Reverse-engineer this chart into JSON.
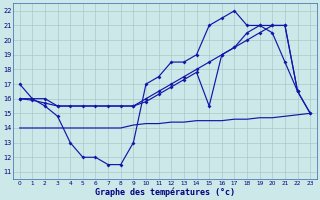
{
  "title": "Graphe des températures (°c)",
  "bg_color": "#cce8e8",
  "line_color": "#1515aa",
  "x_ticks": [
    0,
    1,
    2,
    3,
    4,
    5,
    6,
    7,
    8,
    9,
    10,
    11,
    12,
    13,
    14,
    15,
    16,
    17,
    18,
    19,
    20,
    21,
    22,
    23
  ],
  "y_ticks": [
    11,
    12,
    13,
    14,
    15,
    16,
    17,
    18,
    19,
    20,
    21,
    22
  ],
  "ylim": [
    10.5,
    22.5
  ],
  "xlim": [
    -0.5,
    23.5
  ],
  "s1_x": [
    0,
    1,
    2,
    3,
    4,
    5,
    6,
    7,
    8,
    9,
    10,
    11,
    12,
    13,
    14,
    15,
    16,
    17,
    18,
    19,
    20,
    21,
    22
  ],
  "s1_y": [
    17.0,
    16.0,
    15.5,
    14.8,
    13.0,
    12.0,
    12.0,
    11.5,
    11.5,
    13.0,
    17.0,
    17.5,
    18.5,
    18.5,
    19.0,
    21.0,
    21.5,
    22.0,
    21.0,
    21.0,
    20.5,
    18.5,
    16.5
  ],
  "s2_x": [
    0,
    1,
    2,
    3,
    9,
    10,
    11,
    12,
    13,
    14,
    15,
    16,
    17,
    18,
    19,
    20,
    21,
    22,
    23
  ],
  "s2_y": [
    16.0,
    15.9,
    15.7,
    15.5,
    15.5,
    15.8,
    16.3,
    16.8,
    17.3,
    17.8,
    15.5,
    19.0,
    19.5,
    20.5,
    21.0,
    21.0,
    21.0,
    16.5,
    15.0
  ],
  "s3_x": [
    0,
    1,
    2,
    3,
    4,
    5,
    6,
    7,
    8,
    9,
    10,
    11,
    12,
    13,
    14,
    15,
    16,
    17,
    18,
    19,
    20,
    21,
    22,
    23
  ],
  "s3_y": [
    16.0,
    16.0,
    16.0,
    15.5,
    15.5,
    15.5,
    15.5,
    15.5,
    15.5,
    15.5,
    16.0,
    16.5,
    17.0,
    17.5,
    18.0,
    18.5,
    19.0,
    19.5,
    20.0,
    20.5,
    21.0,
    21.0,
    16.5,
    15.0
  ],
  "s4_x": [
    0,
    1,
    2,
    3,
    4,
    5,
    6,
    7,
    8,
    9,
    10,
    11,
    12,
    13,
    14,
    15,
    16,
    17,
    18,
    19,
    20,
    21,
    22,
    23
  ],
  "s4_y": [
    14.0,
    14.0,
    14.0,
    14.0,
    14.0,
    14.0,
    14.0,
    14.0,
    14.0,
    14.2,
    14.3,
    14.3,
    14.4,
    14.4,
    14.5,
    14.5,
    14.5,
    14.6,
    14.6,
    14.7,
    14.7,
    14.8,
    14.9,
    15.0
  ]
}
